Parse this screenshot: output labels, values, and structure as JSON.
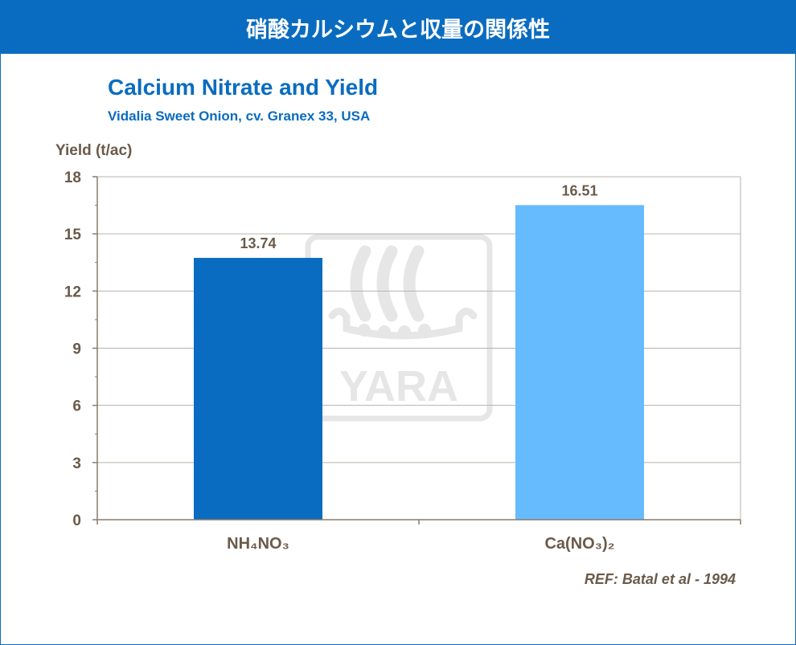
{
  "banner": {
    "title": "硝酸カルシウムと収量の関係性"
  },
  "chart_data": {
    "type": "bar",
    "title": "Calcium Nitrate and Yield",
    "subtitle": "Vidalia  Sweet Onion,  cv. Granex 33, USA",
    "ylabel": "Yield (t/ac)",
    "xlabel": "",
    "categories": [
      "NH₄NO₃",
      "Ca(NO₃)₂"
    ],
    "values": [
      13.74,
      16.51
    ],
    "data_labels": [
      "13.74",
      "16.51"
    ],
    "bar_colors": [
      "#0a6cc0",
      "#66bbff"
    ],
    "ylim": [
      0,
      18
    ],
    "yticks": [
      0,
      3,
      6,
      9,
      12,
      15,
      18
    ],
    "grid": true,
    "gridline_color": "#b8b3ab",
    "axis_color": "#8a7a6a",
    "reference": "REF: Batal et al - 1994",
    "watermark": "YARA"
  }
}
